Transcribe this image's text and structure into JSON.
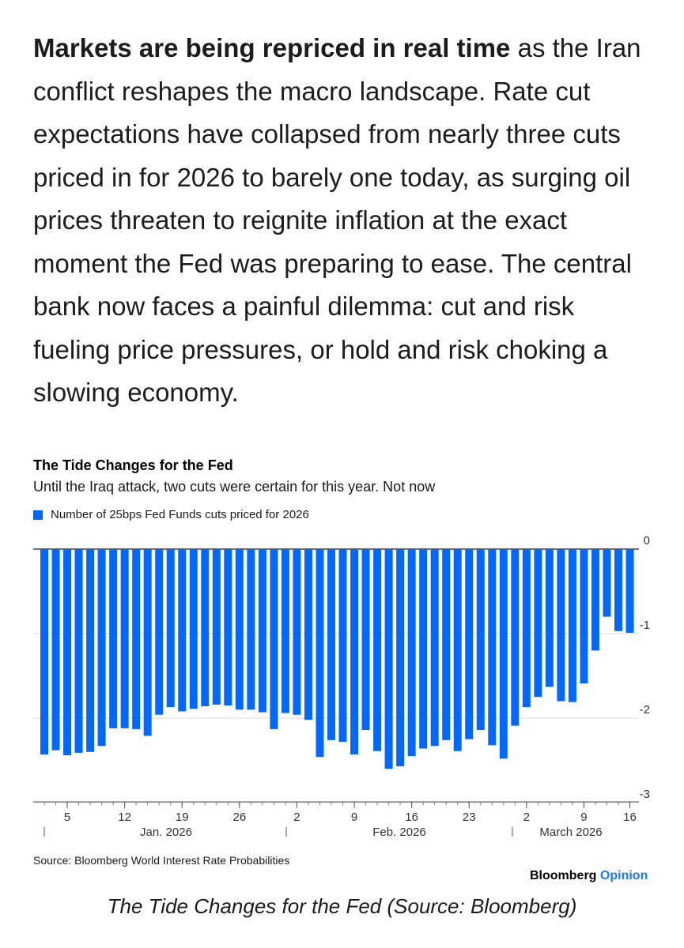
{
  "article": {
    "lead_bold": "Markets are being repriced in real time",
    "body": " as the Iran conflict reshapes the macro landscape. Rate cut expectations have collapsed from nearly three cuts priced in for 2026 to barely one today, as surging oil prices threaten to reignite inflation at the exact moment the Fed was preparing to ease. The central bank now faces a painful dilemma: cut and risk fueling price pressures, or hold and risk choking a slowing economy."
  },
  "chart_data": {
    "type": "bar",
    "title": "The Tide Changes for the Fed",
    "subtitle": "Until the Iraq attack, two cuts were certain for this year. Not now",
    "legend": "Number of 25bps Fed Funds cuts priced for 2026",
    "ylim": [
      -3,
      0
    ],
    "yticks": [
      "0",
      "-1",
      "-2",
      "-3"
    ],
    "ytick_values": [
      0,
      -1,
      -2,
      -3
    ],
    "grid": true,
    "color": "#0068ff",
    "x_tick_labels": [
      "5",
      "12",
      "19",
      "26",
      "2",
      "9",
      "16",
      "23",
      "2",
      "9",
      "16"
    ],
    "month_labels": [
      "Jan. 2026",
      "Feb. 2026",
      "March 2026"
    ],
    "values": [
      -2.43,
      -2.38,
      -2.44,
      -2.41,
      -2.4,
      -2.33,
      -2.12,
      -2.12,
      -2.13,
      -2.21,
      -1.96,
      -1.87,
      -1.92,
      -1.89,
      -1.86,
      -1.84,
      -1.85,
      -1.9,
      -1.9,
      -1.93,
      -2.13,
      -1.94,
      -1.96,
      -2.02,
      -2.46,
      -2.26,
      -2.28,
      -2.43,
      -2.14,
      -2.39,
      -2.6,
      -2.57,
      -2.45,
      -2.36,
      -2.33,
      -2.26,
      -2.39,
      -2.25,
      -2.14,
      -2.32,
      -2.48,
      -2.09,
      -1.87,
      -1.75,
      -1.63,
      -1.8,
      -1.81,
      -1.59,
      -1.2,
      -0.8,
      -0.97,
      -0.99
    ]
  },
  "source": "Source: Bloomberg World Interest Rate Probabilities",
  "brand": {
    "name": "Bloomberg",
    "product": "Opinion"
  },
  "caption": "The Tide Changes for the Fed (Source: Bloomberg)"
}
